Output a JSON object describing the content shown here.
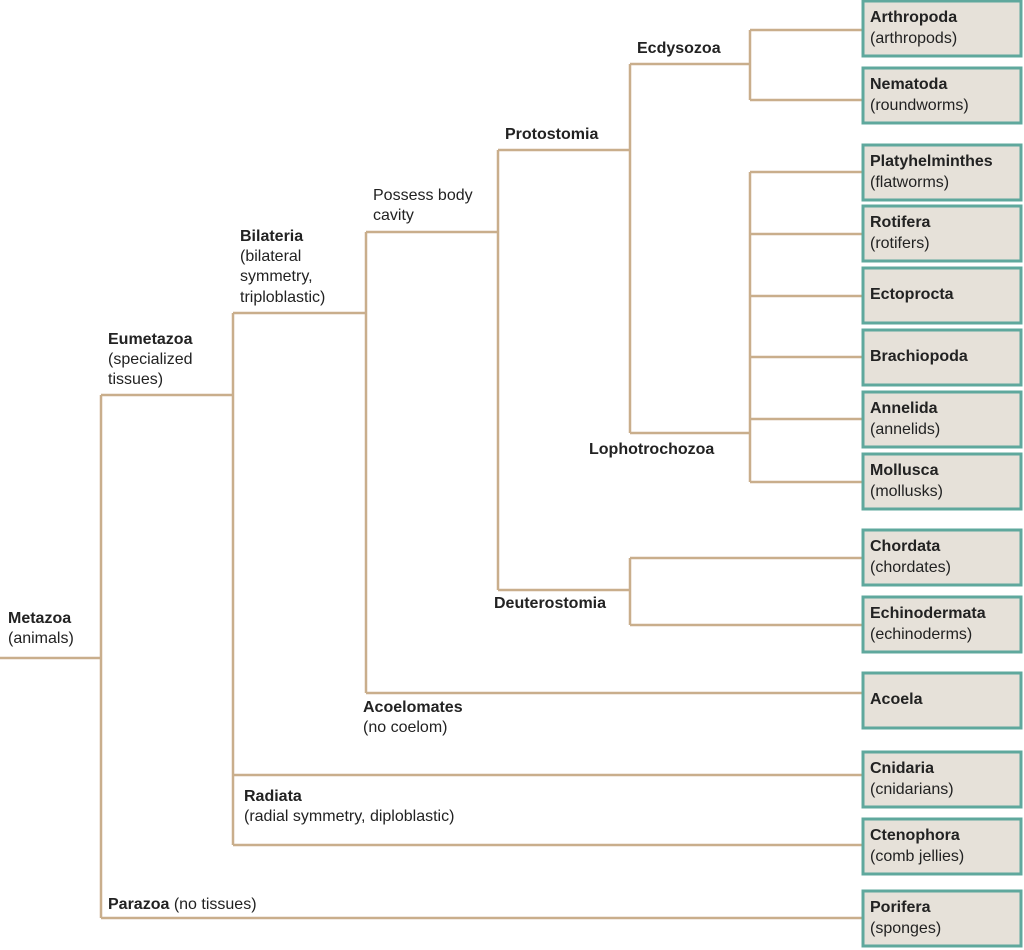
{
  "nodes": [
    {
      "name": "Metazoa",
      "description": [
        "(animals)"
      ]
    },
    {
      "name": "Eumetazoa",
      "description": [
        "(specialized",
        "tissues)"
      ]
    },
    {
      "name": "Parazoa",
      "description": [
        "(no tissues)"
      ]
    },
    {
      "name": "Bilateria",
      "description": [
        "(bilateral",
        "symmetry,",
        "triploblastic)"
      ]
    },
    {
      "name": "Radiata",
      "description": [
        "(radial symmetry, diploblastic)"
      ]
    },
    {
      "description": [
        "Possess body",
        "cavity"
      ]
    },
    {
      "name": "Acoelomates",
      "description": [
        "(no coelom)"
      ]
    },
    {
      "name": "Protostomia"
    },
    {
      "name": "Deuterostomia"
    },
    {
      "name": "Ecdysozoa"
    },
    {
      "name": "Lophotrochozoa"
    }
  ],
  "leaves": [
    {
      "name": "Arthropoda",
      "common": "(arthropods)"
    },
    {
      "name": "Nematoda",
      "common": "(roundworms)"
    },
    {
      "name": "Platyhelminthes",
      "common": "(flatworms)"
    },
    {
      "name": "Rotifera",
      "common": "(rotifers)"
    },
    {
      "name": "Ectoprocta"
    },
    {
      "name": "Brachiopoda"
    },
    {
      "name": "Annelida",
      "common": "(annelids)"
    },
    {
      "name": "Mollusca",
      "common": "(mollusks)"
    },
    {
      "name": "Chordata",
      "common": "(chordates)"
    },
    {
      "name": "Echinodermata",
      "common": "(echinoderms)"
    },
    {
      "name": "Acoela"
    },
    {
      "name": "Cnidaria",
      "common": "(cnidarians)"
    },
    {
      "name": "Ctenophora",
      "common": "(comb jellies)"
    },
    {
      "name": "Porifera",
      "common": "(sponges)"
    }
  ]
}
